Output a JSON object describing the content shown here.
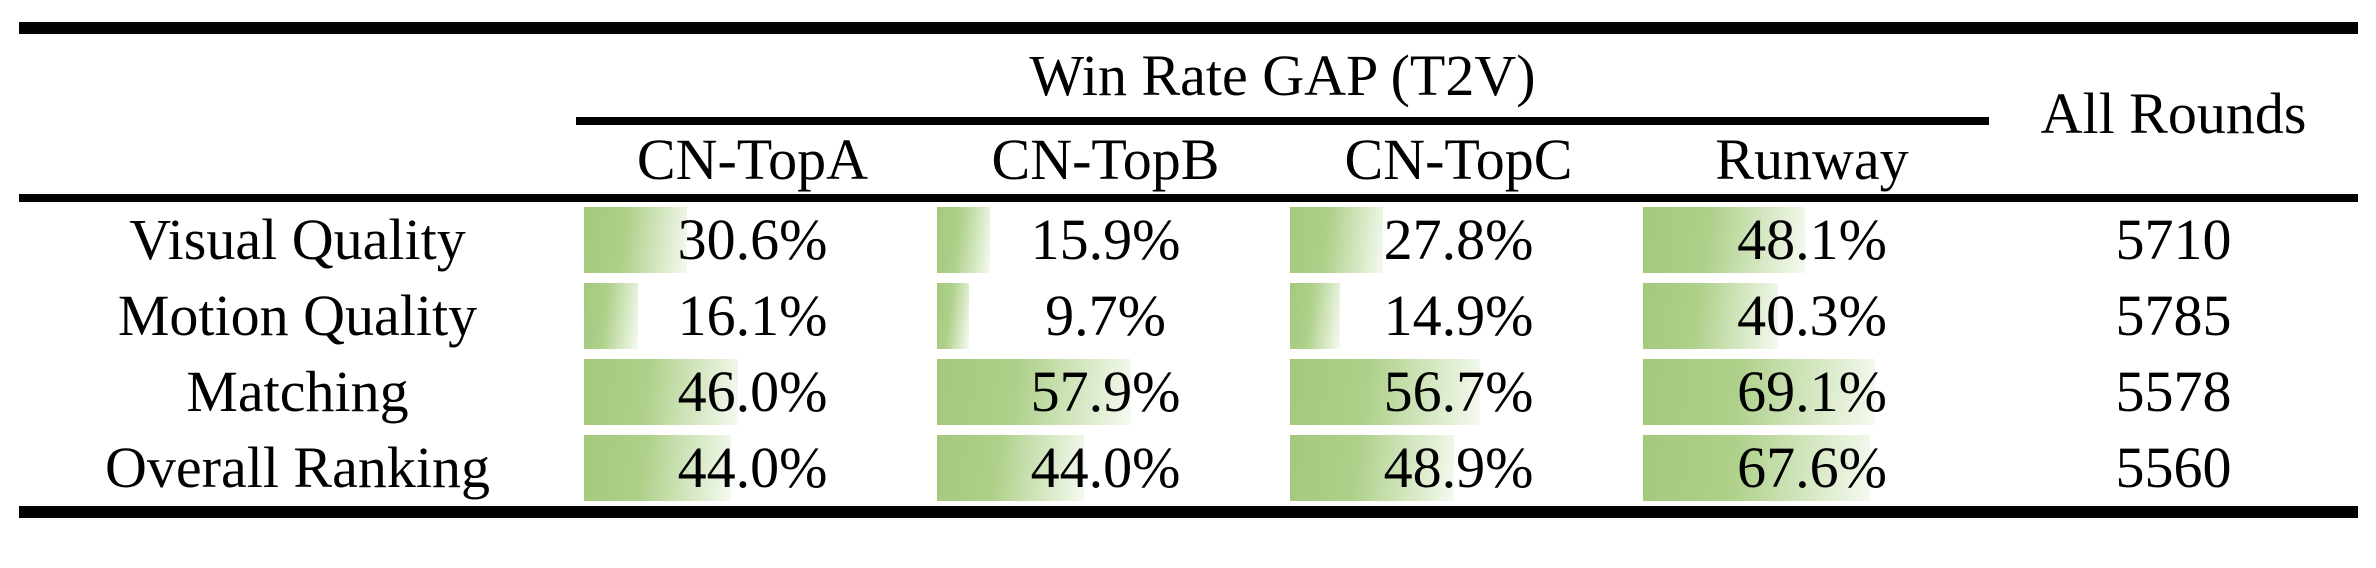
{
  "table": {
    "group_header": "Win Rate GAP (T2V)",
    "all_rounds_header": "All Rounds",
    "model_columns": [
      "CN-TopA",
      "CN-TopB",
      "CN-TopC",
      "Runway"
    ],
    "rows": [
      {
        "label": "Visual Quality",
        "values": [
          "30.6%",
          "15.9%",
          "27.8%",
          "48.1%"
        ],
        "percents": [
          30.6,
          15.9,
          27.8,
          48.1
        ],
        "all_rounds": "5710"
      },
      {
        "label": "Motion Quality",
        "values": [
          "16.1%",
          "9.7%",
          "14.9%",
          "40.3%"
        ],
        "percents": [
          16.1,
          9.7,
          14.9,
          40.3
        ],
        "all_rounds": "5785"
      },
      {
        "label": "Matching",
        "values": [
          "46.0%",
          "57.9%",
          "56.7%",
          "69.1%"
        ],
        "percents": [
          46.0,
          57.9,
          56.7,
          69.1
        ],
        "all_rounds": "5578"
      },
      {
        "label": "Overall Ranking",
        "values": [
          "44.0%",
          "44.0%",
          "48.9%",
          "67.6%"
        ],
        "percents": [
          44.0,
          44.0,
          48.9,
          67.6
        ],
        "all_rounds": "5560"
      }
    ]
  },
  "colors": {
    "bar_green": "#a3c97e",
    "bar_fade": "#f5faf0",
    "rule_black": "#000000",
    "background": "#ffffff",
    "text": "#000000"
  },
  "chart_data": {
    "type": "table",
    "title": "Win Rate GAP (T2V)",
    "columns": [
      "CN-TopA",
      "CN-TopB",
      "CN-TopC",
      "Runway",
      "All Rounds"
    ],
    "rows": [
      "Visual Quality",
      "Motion Quality",
      "Matching",
      "Overall Ranking"
    ],
    "win_rate_gap_percent": {
      "Visual Quality": [
        30.6,
        15.9,
        27.8,
        48.1
      ],
      "Motion Quality": [
        16.1,
        9.7,
        14.9,
        40.3
      ],
      "Matching": [
        46.0,
        57.9,
        56.7,
        69.1
      ],
      "Overall Ranking": [
        44.0,
        44.0,
        48.9,
        67.6
      ]
    },
    "all_rounds": {
      "Visual Quality": 5710,
      "Motion Quality": 5785,
      "Matching": 5578,
      "Overall Ranking": 5560
    },
    "layout_hints": "in-cell horizontal green gradient bars anchored left; bar length = percent of cell width; booktabs-style black rules"
  }
}
